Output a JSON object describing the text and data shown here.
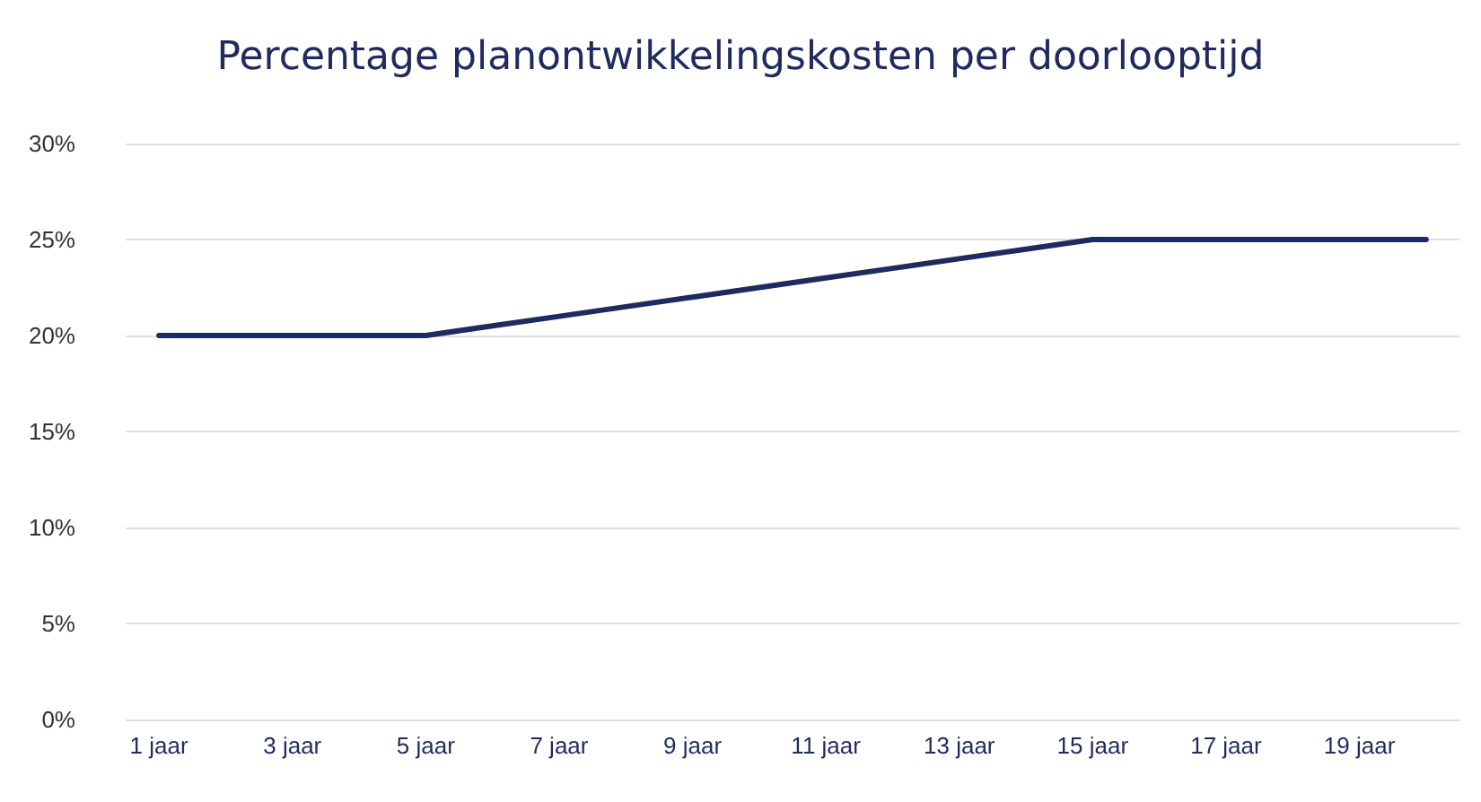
{
  "chart_data": {
    "type": "line",
    "title": "Percentage planontwikkelingskosten per doorlooptijd",
    "categories": [
      "1 jaar",
      null,
      "3 jaar",
      null,
      "5 jaar",
      null,
      "7 jaar",
      null,
      "9 jaar",
      null,
      "11 jaar",
      null,
      "13 jaar",
      null,
      "15 jaar",
      null,
      "17 jaar",
      null,
      "19 jaar",
      null
    ],
    "series": [
      {
        "color": "#1f2a5e",
        "values": [
          20,
          20,
          20,
          20,
          20,
          20.5,
          21,
          21.5,
          22,
          22.5,
          23,
          23.5,
          24,
          24.5,
          25,
          25,
          25,
          25,
          25,
          25
        ]
      }
    ],
    "ylim": [
      0,
      30
    ],
    "yticks": [
      {
        "value": 0,
        "label": "0%"
      },
      {
        "value": 5,
        "label": "5%"
      },
      {
        "value": 10,
        "label": "10%"
      },
      {
        "value": 15,
        "label": "15%"
      },
      {
        "value": 20,
        "label": "20%"
      },
      {
        "value": 25,
        "label": "25%"
      },
      {
        "value": 30,
        "label": "30%"
      }
    ],
    "grid": "y",
    "marker": "none",
    "line_style": "solid"
  }
}
